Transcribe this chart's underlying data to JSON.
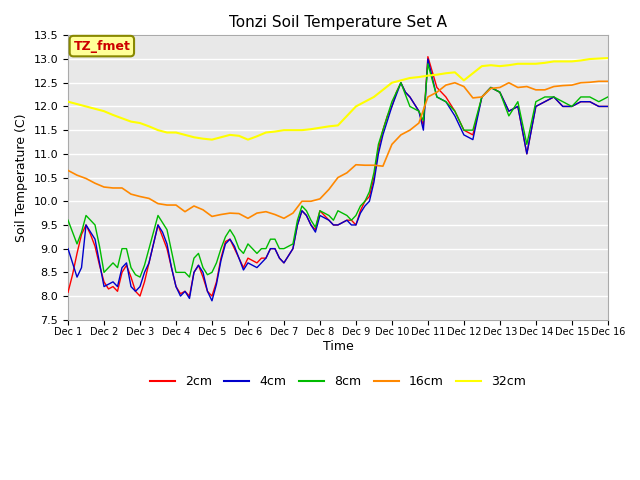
{
  "title": "Tonzi Soil Temperature Set A",
  "xlabel": "Time",
  "ylabel": "Soil Temperature (C)",
  "ylim": [
    7.5,
    13.5
  ],
  "xlim": [
    0,
    15
  ],
  "xtick_labels": [
    "Dec 1",
    "Dec 2",
    "Dec 3",
    "Dec 4",
    "Dec 5",
    "Dec 6",
    "Dec 7",
    "Dec 8",
    "Dec 9",
    "Dec 10",
    "Dec 11",
    "Dec 12",
    "Dec 13",
    "Dec 14",
    "Dec 15",
    "Dec 16"
  ],
  "xtick_positions": [
    0,
    1,
    2,
    3,
    4,
    5,
    6,
    7,
    8,
    9,
    10,
    11,
    12,
    13,
    14,
    15
  ],
  "colors": {
    "2cm": "#ff0000",
    "4cm": "#0000cc",
    "8cm": "#00bb00",
    "16cm": "#ff8800",
    "32cm": "#ffff00"
  },
  "background_color": "#e8e8e8",
  "annotation_label": "TZ_fmet",
  "annotation_bg": "#ffff99",
  "annotation_border": "#888800",
  "annotation_text_color": "#cc0000",
  "2cm_x": [
    0.0,
    0.125,
    0.25,
    0.375,
    0.5,
    0.625,
    0.75,
    0.875,
    1.0,
    1.125,
    1.25,
    1.375,
    1.5,
    1.625,
    1.75,
    1.875,
    2.0,
    2.125,
    2.25,
    2.375,
    2.5,
    2.625,
    2.75,
    2.875,
    3.0,
    3.125,
    3.25,
    3.375,
    3.5,
    3.625,
    3.75,
    3.875,
    4.0,
    4.125,
    4.25,
    4.375,
    4.5,
    4.625,
    4.75,
    4.875,
    5.0,
    5.125,
    5.25,
    5.375,
    5.5,
    5.625,
    5.75,
    5.875,
    6.0,
    6.125,
    6.25,
    6.375,
    6.5,
    6.625,
    6.75,
    6.875,
    7.0,
    7.125,
    7.25,
    7.375,
    7.5,
    7.625,
    7.75,
    7.875,
    8.0,
    8.125,
    8.25,
    8.375,
    8.5,
    8.625,
    8.75,
    8.875,
    9.0,
    9.125,
    9.25,
    9.375,
    9.5,
    9.625,
    9.75,
    9.875,
    10.0,
    10.25,
    10.5,
    10.75,
    11.0,
    11.25,
    11.5,
    11.75,
    12.0,
    12.25,
    12.5,
    12.75,
    13.0,
    13.25,
    13.5,
    13.75,
    14.0,
    14.25,
    14.5,
    14.75,
    15.0
  ],
  "2cm_y": [
    8.08,
    8.45,
    8.9,
    9.3,
    9.5,
    9.3,
    9.05,
    8.65,
    8.3,
    8.15,
    8.2,
    8.1,
    8.5,
    8.65,
    8.4,
    8.1,
    8.0,
    8.3,
    8.7,
    9.1,
    9.5,
    9.25,
    9.0,
    8.6,
    8.2,
    8.05,
    8.1,
    8.0,
    8.5,
    8.65,
    8.4,
    8.1,
    8.0,
    8.3,
    8.8,
    9.15,
    9.2,
    9.0,
    8.8,
    8.6,
    8.8,
    8.75,
    8.7,
    8.8,
    8.8,
    9.0,
    9.0,
    8.8,
    8.7,
    8.85,
    9.0,
    9.5,
    9.8,
    9.7,
    9.5,
    9.4,
    9.8,
    9.7,
    9.6,
    9.5,
    9.5,
    9.55,
    9.6,
    9.6,
    9.5,
    9.8,
    10.0,
    10.1,
    10.5,
    11.1,
    11.5,
    11.8,
    12.0,
    12.3,
    12.5,
    12.3,
    12.2,
    12.05,
    11.9,
    11.6,
    13.05,
    12.4,
    12.2,
    11.9,
    11.5,
    11.4,
    12.2,
    12.4,
    12.3,
    11.9,
    12.0,
    11.0,
    12.0,
    12.1,
    12.2,
    12.0,
    12.0,
    12.1,
    12.1,
    12.0,
    12.0
  ],
  "4cm_x": [
    0.0,
    0.125,
    0.25,
    0.375,
    0.5,
    0.625,
    0.75,
    0.875,
    1.0,
    1.125,
    1.25,
    1.375,
    1.5,
    1.625,
    1.75,
    1.875,
    2.0,
    2.125,
    2.25,
    2.375,
    2.5,
    2.625,
    2.75,
    2.875,
    3.0,
    3.125,
    3.25,
    3.375,
    3.5,
    3.625,
    3.75,
    3.875,
    4.0,
    4.125,
    4.25,
    4.375,
    4.5,
    4.625,
    4.75,
    4.875,
    5.0,
    5.125,
    5.25,
    5.375,
    5.5,
    5.625,
    5.75,
    5.875,
    6.0,
    6.125,
    6.25,
    6.375,
    6.5,
    6.625,
    6.75,
    6.875,
    7.0,
    7.125,
    7.25,
    7.375,
    7.5,
    7.625,
    7.75,
    7.875,
    8.0,
    8.125,
    8.25,
    8.375,
    8.5,
    8.625,
    8.75,
    8.875,
    9.0,
    9.125,
    9.25,
    9.375,
    9.5,
    9.625,
    9.75,
    9.875,
    10.0,
    10.25,
    10.5,
    10.75,
    11.0,
    11.25,
    11.5,
    11.75,
    12.0,
    12.25,
    12.5,
    12.75,
    13.0,
    13.25,
    13.5,
    13.75,
    14.0,
    14.25,
    14.5,
    14.75,
    15.0
  ],
  "4cm_y": [
    9.0,
    8.7,
    8.4,
    8.6,
    9.5,
    9.35,
    9.2,
    8.7,
    8.2,
    8.25,
    8.3,
    8.2,
    8.6,
    8.7,
    8.2,
    8.1,
    8.2,
    8.5,
    8.7,
    9.1,
    9.5,
    9.35,
    9.1,
    8.6,
    8.2,
    8.0,
    8.1,
    7.95,
    8.5,
    8.65,
    8.5,
    8.1,
    7.9,
    8.25,
    8.75,
    9.1,
    9.2,
    9.05,
    8.8,
    8.55,
    8.7,
    8.65,
    8.6,
    8.7,
    8.8,
    9.0,
    9.0,
    8.8,
    8.7,
    8.85,
    9.0,
    9.5,
    9.8,
    9.7,
    9.5,
    9.35,
    9.7,
    9.65,
    9.6,
    9.5,
    9.5,
    9.55,
    9.6,
    9.5,
    9.5,
    9.75,
    9.9,
    10.0,
    10.4,
    11.0,
    11.4,
    11.7,
    12.0,
    12.25,
    12.5,
    12.3,
    12.2,
    12.05,
    11.9,
    11.5,
    13.0,
    12.2,
    12.1,
    11.8,
    11.4,
    11.3,
    12.2,
    12.4,
    12.3,
    11.9,
    12.0,
    11.0,
    12.0,
    12.1,
    12.2,
    12.0,
    12.0,
    12.1,
    12.1,
    12.0,
    12.0
  ],
  "8cm_x": [
    0.0,
    0.125,
    0.25,
    0.375,
    0.5,
    0.625,
    0.75,
    0.875,
    1.0,
    1.125,
    1.25,
    1.375,
    1.5,
    1.625,
    1.75,
    1.875,
    2.0,
    2.125,
    2.25,
    2.375,
    2.5,
    2.625,
    2.75,
    2.875,
    3.0,
    3.125,
    3.25,
    3.375,
    3.5,
    3.625,
    3.75,
    3.875,
    4.0,
    4.125,
    4.25,
    4.375,
    4.5,
    4.625,
    4.75,
    4.875,
    5.0,
    5.125,
    5.25,
    5.375,
    5.5,
    5.625,
    5.75,
    5.875,
    6.0,
    6.125,
    6.25,
    6.375,
    6.5,
    6.625,
    6.75,
    6.875,
    7.0,
    7.125,
    7.25,
    7.375,
    7.5,
    7.625,
    7.75,
    7.875,
    8.0,
    8.125,
    8.25,
    8.375,
    8.5,
    8.625,
    8.75,
    8.875,
    9.0,
    9.125,
    9.25,
    9.375,
    9.5,
    9.625,
    9.75,
    9.875,
    10.0,
    10.25,
    10.5,
    10.75,
    11.0,
    11.25,
    11.5,
    11.75,
    12.0,
    12.25,
    12.5,
    12.75,
    13.0,
    13.25,
    13.5,
    13.75,
    14.0,
    14.25,
    14.5,
    14.75,
    15.0
  ],
  "8cm_y": [
    9.6,
    9.35,
    9.1,
    9.35,
    9.7,
    9.6,
    9.5,
    9.05,
    8.5,
    8.6,
    8.7,
    8.6,
    9.0,
    9.0,
    8.6,
    8.45,
    8.4,
    8.65,
    9.0,
    9.35,
    9.7,
    9.55,
    9.4,
    8.95,
    8.5,
    8.5,
    8.5,
    8.4,
    8.8,
    8.9,
    8.6,
    8.45,
    8.5,
    8.7,
    9.0,
    9.25,
    9.4,
    9.25,
    9.0,
    8.9,
    9.1,
    9.0,
    8.9,
    9.0,
    9.0,
    9.2,
    9.2,
    9.0,
    9.0,
    9.05,
    9.1,
    9.6,
    9.9,
    9.8,
    9.6,
    9.45,
    9.8,
    9.75,
    9.7,
    9.6,
    9.8,
    9.75,
    9.7,
    9.6,
    9.7,
    9.9,
    10.0,
    10.2,
    10.6,
    11.2,
    11.5,
    11.8,
    12.1,
    12.3,
    12.5,
    12.25,
    12.0,
    11.95,
    11.9,
    11.7,
    12.9,
    12.2,
    12.1,
    11.9,
    11.5,
    11.5,
    12.2,
    12.4,
    12.3,
    11.8,
    12.1,
    11.2,
    12.1,
    12.2,
    12.2,
    12.1,
    12.0,
    12.2,
    12.2,
    12.1,
    12.2
  ],
  "16cm_x": [
    0.0,
    0.25,
    0.5,
    0.75,
    1.0,
    1.25,
    1.5,
    1.75,
    2.0,
    2.25,
    2.5,
    2.75,
    3.0,
    3.25,
    3.5,
    3.75,
    4.0,
    4.25,
    4.5,
    4.75,
    5.0,
    5.25,
    5.5,
    5.75,
    6.0,
    6.25,
    6.5,
    6.75,
    7.0,
    7.25,
    7.5,
    7.75,
    8.0,
    8.25,
    8.5,
    8.75,
    9.0,
    9.25,
    9.5,
    9.75,
    10.0,
    10.25,
    10.5,
    10.75,
    11.0,
    11.25,
    11.5,
    11.75,
    12.0,
    12.25,
    12.5,
    12.75,
    13.0,
    13.25,
    13.5,
    13.75,
    14.0,
    14.25,
    14.5,
    14.75,
    15.0
  ],
  "16cm_y": [
    10.65,
    10.55,
    10.48,
    10.38,
    10.3,
    10.28,
    10.28,
    10.15,
    10.1,
    10.06,
    9.95,
    9.92,
    9.92,
    9.78,
    9.9,
    9.82,
    9.68,
    9.72,
    9.75,
    9.74,
    9.64,
    9.75,
    9.78,
    9.72,
    9.64,
    9.75,
    10.0,
    10.0,
    10.05,
    10.25,
    10.5,
    10.6,
    10.77,
    10.76,
    10.76,
    10.74,
    11.2,
    11.4,
    11.5,
    11.65,
    12.2,
    12.3,
    12.45,
    12.5,
    12.42,
    12.18,
    12.2,
    12.38,
    12.4,
    12.5,
    12.4,
    12.42,
    12.35,
    12.35,
    12.42,
    12.44,
    12.45,
    12.5,
    12.51,
    12.53,
    12.53
  ],
  "32cm_x": [
    0.0,
    0.25,
    0.5,
    0.75,
    1.0,
    1.25,
    1.5,
    1.75,
    2.0,
    2.25,
    2.5,
    2.75,
    3.0,
    3.25,
    3.5,
    3.75,
    4.0,
    4.25,
    4.5,
    4.75,
    5.0,
    5.25,
    5.5,
    5.75,
    6.0,
    6.25,
    6.5,
    6.75,
    7.0,
    7.25,
    7.5,
    7.75,
    8.0,
    8.25,
    8.5,
    8.75,
    9.0,
    9.25,
    9.5,
    9.75,
    10.0,
    10.25,
    10.5,
    10.75,
    11.0,
    11.25,
    11.5,
    11.75,
    12.0,
    12.25,
    12.5,
    12.75,
    13.0,
    13.25,
    13.5,
    13.75,
    14.0,
    14.25,
    14.5,
    14.75,
    15.0
  ],
  "32cm_y": [
    12.1,
    12.05,
    12.0,
    11.95,
    11.9,
    11.82,
    11.75,
    11.68,
    11.65,
    11.58,
    11.5,
    11.45,
    11.45,
    11.4,
    11.35,
    11.32,
    11.3,
    11.35,
    11.4,
    11.38,
    11.3,
    11.37,
    11.45,
    11.47,
    11.5,
    11.5,
    11.5,
    11.52,
    11.55,
    11.58,
    11.6,
    11.8,
    12.0,
    12.1,
    12.2,
    12.35,
    12.5,
    12.55,
    12.6,
    12.62,
    12.65,
    12.67,
    12.7,
    12.72,
    12.55,
    12.7,
    12.85,
    12.87,
    12.85,
    12.87,
    12.9,
    12.9,
    12.9,
    12.92,
    12.95,
    12.95,
    12.95,
    12.97,
    13.0,
    13.01,
    13.02
  ]
}
